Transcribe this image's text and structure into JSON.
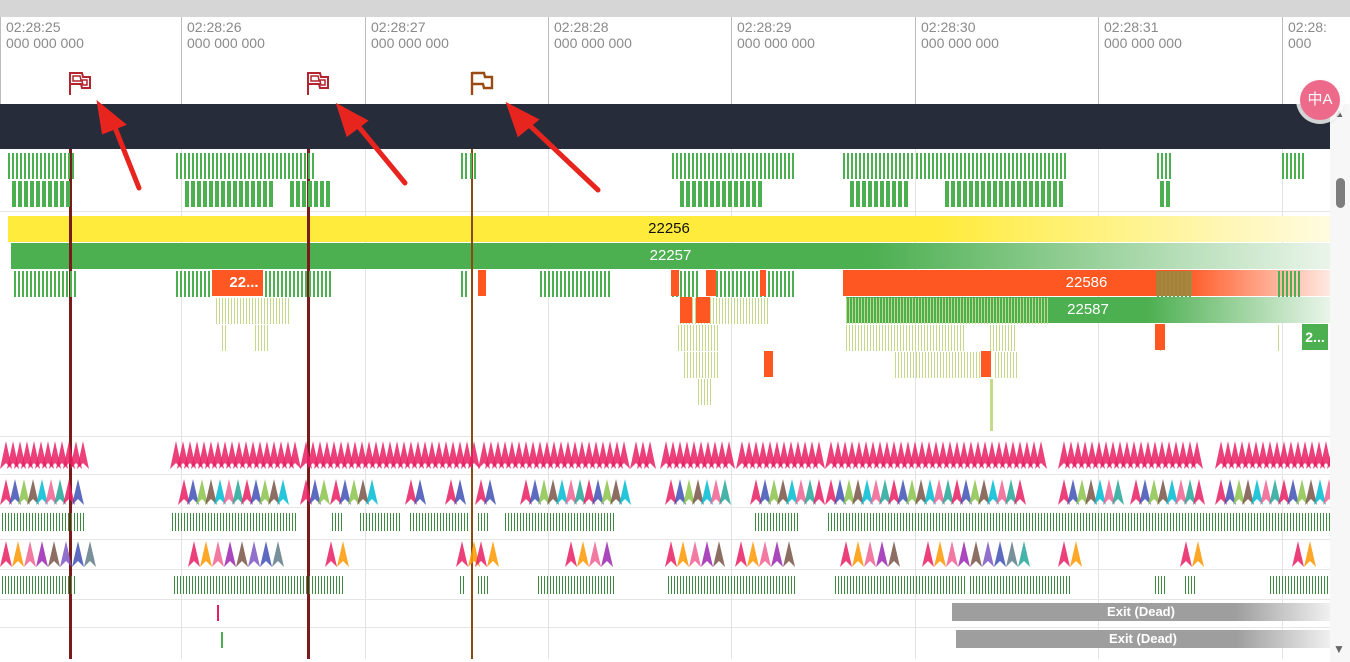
{
  "ruler": {
    "ticks": [
      {
        "time": "02:28:25",
        "ns": "000 000 000"
      },
      {
        "time": "02:28:26",
        "ns": "000 000 000"
      },
      {
        "time": "02:28:27",
        "ns": "000 000 000"
      },
      {
        "time": "02:28:28",
        "ns": "000 000 000"
      },
      {
        "time": "02:28:29",
        "ns": "000 000 000"
      },
      {
        "time": "02:28:30",
        "ns": "000 000 000"
      },
      {
        "time": "02:28:31",
        "ns": "000 000 000"
      },
      {
        "time": "02:28:",
        "ns": "000"
      }
    ]
  },
  "flags": [
    {
      "icon": "flag-icon",
      "color": "#b3242e"
    },
    {
      "icon": "flag-icon",
      "color": "#b3242e"
    },
    {
      "icon": "flag-icon",
      "color": "#9a4a12"
    }
  ],
  "colors": {
    "dark_band": "#262c3a",
    "yellow": "#ffeb3b",
    "green": "#4caf50",
    "orange": "#ff5722",
    "light_green": "#c5d98a",
    "exit_gray": "#9e9e9e",
    "marker_red": "#7b1a1a",
    "marker_brown": "#8a4b12"
  },
  "bars": {
    "b1": "22256",
    "b2": "22257",
    "b3": "22...",
    "b4": "22586",
    "b5": "22587",
    "b6": "2..."
  },
  "exits": {
    "e1": "Exit (Dead)",
    "e2": "Exit (Dead)"
  },
  "badge": {
    "label": "中A"
  }
}
